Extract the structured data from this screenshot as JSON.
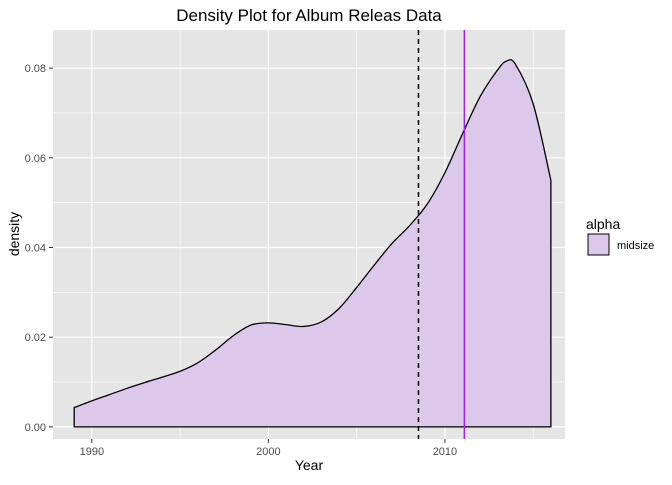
{
  "chart_data": {
    "type": "area",
    "title": "Density Plot for Album Releas Data",
    "xlabel": "Year",
    "ylabel": "density",
    "xlim": [
      1987.8,
      2016.8
    ],
    "ylim": [
      -0.0027,
      0.0885
    ],
    "grid": true,
    "x_ticks": [
      1990,
      2000,
      2010
    ],
    "x_tick_labels": [
      "1990",
      "2000",
      "2010"
    ],
    "y_ticks": [
      0.0,
      0.02,
      0.04,
      0.06,
      0.08
    ],
    "y_tick_labels": [
      "0.00",
      "0.02",
      "0.04",
      "0.06",
      "0.08"
    ],
    "series": [
      {
        "name": "midsize",
        "fill": "#dcc8ea",
        "stroke": "#000000",
        "x": [
          1989,
          1990,
          1991,
          1992,
          1993,
          1994,
          1995,
          1996,
          1997,
          1998,
          1999,
          2000,
          2001,
          2002,
          2003,
          2004,
          2005,
          2006,
          2007,
          2008,
          2009,
          2010,
          2011,
          2012,
          2013,
          2013.5,
          2014,
          2015,
          2016
        ],
        "y": [
          0.0043,
          0.0058,
          0.0072,
          0.0086,
          0.0099,
          0.0111,
          0.0124,
          0.0143,
          0.0171,
          0.0203,
          0.0227,
          0.0232,
          0.0228,
          0.0224,
          0.0234,
          0.0264,
          0.0311,
          0.0361,
          0.0409,
          0.0449,
          0.0497,
          0.0567,
          0.0654,
          0.0737,
          0.0797,
          0.0816,
          0.0808,
          0.072,
          0.055
        ]
      }
    ],
    "vlines": [
      {
        "x": 2008.5,
        "color": "#000000",
        "style": "dashed"
      },
      {
        "x": 2011.1,
        "color": "#a020f0",
        "style": "solid"
      }
    ],
    "legend": {
      "title": "alpha",
      "position": "right",
      "entries": [
        {
          "label": "midsize",
          "fill": "#dcc8ea"
        }
      ]
    },
    "colors": {
      "panel_background": "#e5e5e5",
      "grid": "#ffffff",
      "tick_label": "#4d4d4d"
    }
  }
}
